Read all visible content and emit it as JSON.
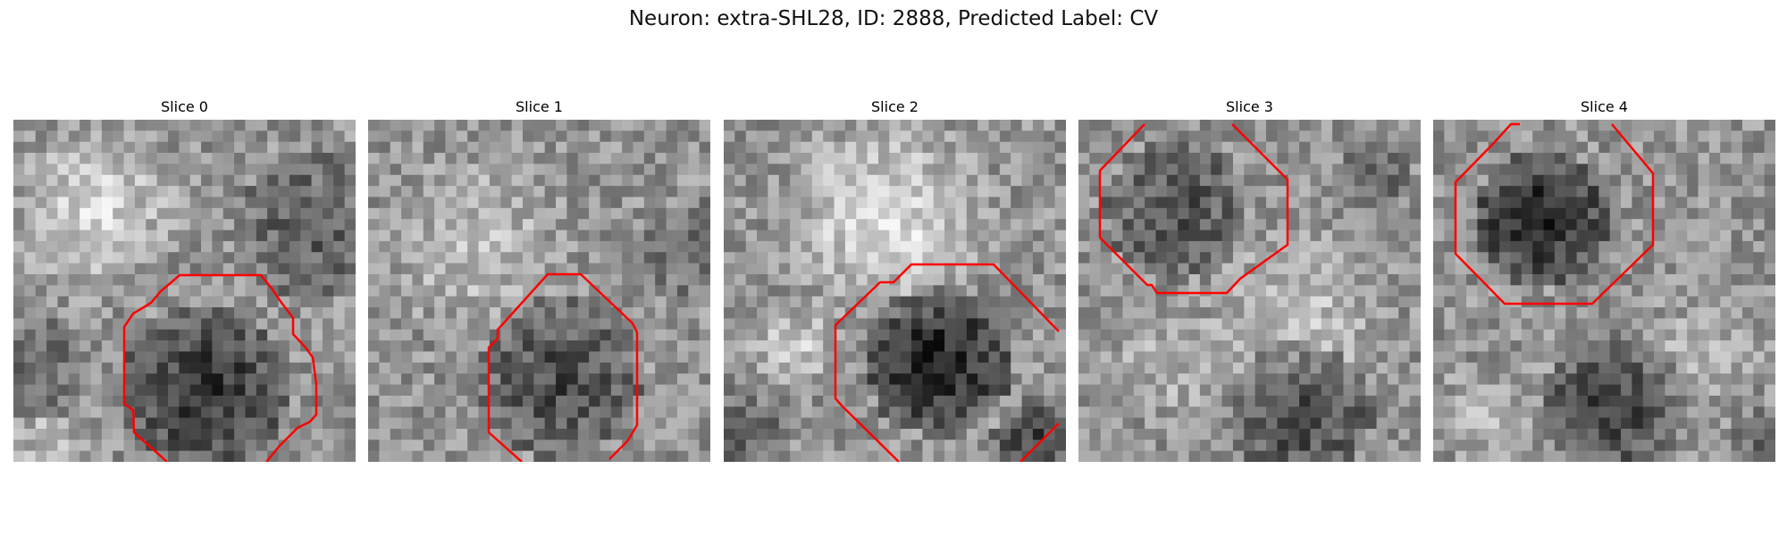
{
  "figure": {
    "title": "Neuron: extra-SHL28, ID: 2888, Predicted Label: CV"
  },
  "panels": [
    {
      "title": "Slice 0"
    },
    {
      "title": "Slice 1"
    },
    {
      "title": "Slice 2"
    },
    {
      "title": "Slice 3"
    },
    {
      "title": "Slice 4"
    }
  ],
  "colors": {
    "contour": "#ff0000",
    "colormap": "gray"
  }
}
